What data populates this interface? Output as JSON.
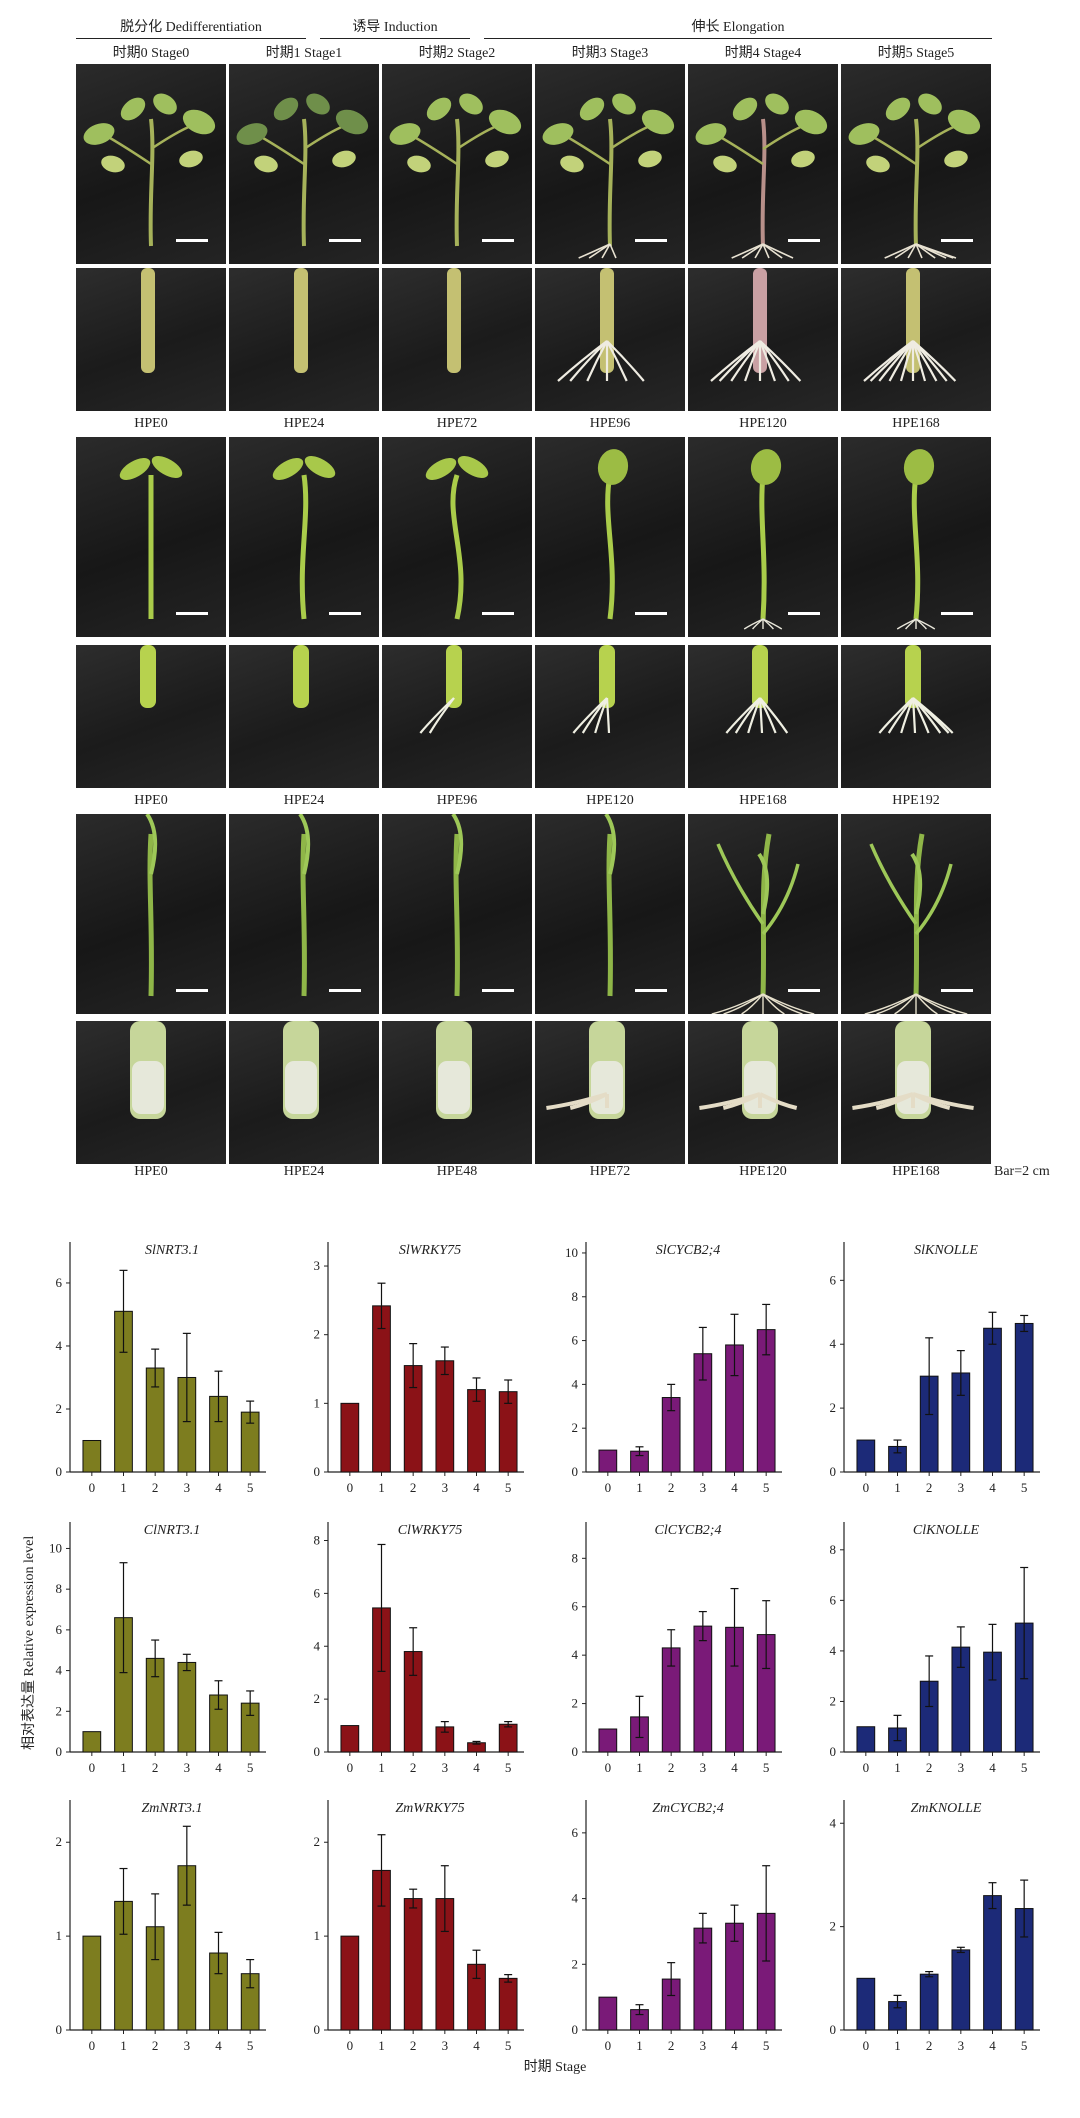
{
  "phases": [
    {
      "label": "脱分化 Dedifferentiation"
    },
    {
      "label": "诱导 Induction"
    },
    {
      "label": "伸长 Elongation"
    }
  ],
  "stages": [
    "时期0 Stage0",
    "时期1 Stage1",
    "时期2 Stage2",
    "时期3 Stage3",
    "时期4 Stage4",
    "时期5 Stage5"
  ],
  "photo_rows": [
    {
      "hpe": [
        "HPE0",
        "HPE24",
        "HPE72",
        "HPE96",
        "HPE120",
        "HPE168"
      ]
    },
    {
      "hpe": [
        "HPE0",
        "HPE24",
        "HPE96",
        "HPE120",
        "HPE168",
        "HPE192"
      ]
    },
    {
      "hpe": [
        "HPE0",
        "HPE24",
        "HPE48",
        "HPE72",
        "HPE120",
        "HPE168"
      ]
    }
  ],
  "scale_bar_note": "Bar=2 cm",
  "y_axis_label": "相对表达量 Relative expression level",
  "x_axis_label": "时期 Stage",
  "colors": {
    "olive": "#7d7d1f",
    "red": "#8b1217",
    "purple": "#7a1a78",
    "navy": "#1c2a78"
  },
  "chart_data": [
    {
      "type": "bar",
      "title": "SlNRT3.1",
      "categories": [
        "0",
        "1",
        "2",
        "3",
        "4",
        "5"
      ],
      "values": [
        1,
        5.1,
        3.3,
        3.0,
        2.4,
        1.9
      ],
      "errors": [
        0,
        1.3,
        0.6,
        1.4,
        0.8,
        0.35
      ],
      "ylim": [
        0,
        7.3
      ],
      "ticks": [
        0,
        2,
        4,
        6
      ],
      "color": "#7d7d1f"
    },
    {
      "type": "bar",
      "title": "SlWRKY75",
      "categories": [
        "0",
        "1",
        "2",
        "3",
        "4",
        "5"
      ],
      "values": [
        1,
        2.42,
        1.55,
        1.62,
        1.2,
        1.17
      ],
      "errors": [
        0,
        0.33,
        0.32,
        0.2,
        0.17,
        0.17
      ],
      "ylim": [
        0,
        3.35
      ],
      "ticks": [
        0,
        1,
        2,
        3
      ],
      "color": "#8b1217"
    },
    {
      "type": "bar",
      "title": "SlCYCB2;4",
      "categories": [
        "0",
        "1",
        "2",
        "3",
        "4",
        "5"
      ],
      "values": [
        1,
        0.95,
        3.4,
        5.4,
        5.8,
        6.5
      ],
      "errors": [
        0,
        0.2,
        0.6,
        1.2,
        1.4,
        1.15
      ],
      "ylim": [
        0,
        10.5
      ],
      "ticks": [
        0,
        2,
        4,
        6,
        8,
        10
      ],
      "color": "#7a1a78"
    },
    {
      "type": "bar",
      "title": "SlKNOLLE",
      "categories": [
        "0",
        "1",
        "2",
        "3",
        "4",
        "5"
      ],
      "values": [
        1,
        0.8,
        3.0,
        3.1,
        4.5,
        4.65
      ],
      "errors": [
        0,
        0.2,
        1.2,
        0.7,
        0.5,
        0.25
      ],
      "ylim": [
        0,
        7.2
      ],
      "ticks": [
        0,
        2,
        4,
        6
      ],
      "color": "#1c2a78"
    },
    {
      "type": "bar",
      "title": "ClNRT3.1",
      "categories": [
        "0",
        "1",
        "2",
        "3",
        "4",
        "5"
      ],
      "values": [
        1,
        6.6,
        4.6,
        4.4,
        2.8,
        2.4
      ],
      "errors": [
        0,
        2.7,
        0.9,
        0.4,
        0.7,
        0.6
      ],
      "ylim": [
        0,
        11.3
      ],
      "ticks": [
        0,
        2,
        4,
        6,
        8,
        10
      ],
      "color": "#7d7d1f"
    },
    {
      "type": "bar",
      "title": "ClWRKY75",
      "categories": [
        "0",
        "1",
        "2",
        "3",
        "4",
        "5"
      ],
      "values": [
        1,
        5.45,
        3.8,
        0.95,
        0.35,
        1.05
      ],
      "errors": [
        0,
        2.4,
        0.9,
        0.2,
        0.05,
        0.1
      ],
      "ylim": [
        0,
        8.7
      ],
      "ticks": [
        0,
        2,
        4,
        6,
        8
      ],
      "color": "#8b1217"
    },
    {
      "type": "bar",
      "title": "ClCYCB2;4",
      "categories": [
        "0",
        "1",
        "2",
        "3",
        "4",
        "5"
      ],
      "values": [
        0.95,
        1.45,
        4.3,
        5.2,
        5.15,
        4.85
      ],
      "errors": [
        0,
        0.85,
        0.75,
        0.6,
        1.6,
        1.4
      ],
      "ylim": [
        0,
        9.5
      ],
      "ticks": [
        0,
        2,
        4,
        6,
        8
      ],
      "color": "#7a1a78"
    },
    {
      "type": "bar",
      "title": "ClKNOLLE",
      "categories": [
        "0",
        "1",
        "2",
        "3",
        "4",
        "5"
      ],
      "values": [
        1,
        0.95,
        2.8,
        4.15,
        3.95,
        5.1
      ],
      "errors": [
        0,
        0.5,
        1.0,
        0.8,
        1.1,
        2.2
      ],
      "ylim": [
        0,
        9.1
      ],
      "ticks": [
        0,
        2,
        4,
        6,
        8
      ],
      "color": "#1c2a78"
    },
    {
      "type": "bar",
      "title": "ZmNRT3.1",
      "categories": [
        "0",
        "1",
        "2",
        "3",
        "4",
        "5"
      ],
      "values": [
        1,
        1.37,
        1.1,
        1.75,
        0.82,
        0.6
      ],
      "errors": [
        0,
        0.35,
        0.35,
        0.42,
        0.22,
        0.15
      ],
      "ylim": [
        0,
        2.45
      ],
      "ticks": [
        0,
        1,
        2
      ],
      "color": "#7d7d1f"
    },
    {
      "type": "bar",
      "title": "ZmWRKY75",
      "categories": [
        "0",
        "1",
        "2",
        "3",
        "4",
        "5"
      ],
      "values": [
        1,
        1.7,
        1.4,
        1.4,
        0.7,
        0.55
      ],
      "errors": [
        0,
        0.38,
        0.1,
        0.35,
        0.15,
        0.04
      ],
      "ylim": [
        0,
        2.45
      ],
      "ticks": [
        0,
        1,
        2
      ],
      "color": "#8b1217"
    },
    {
      "type": "bar",
      "title": "ZmCYCB2;4",
      "categories": [
        "0",
        "1",
        "2",
        "3",
        "4",
        "5"
      ],
      "values": [
        1,
        0.62,
        1.55,
        3.1,
        3.25,
        3.55
      ],
      "errors": [
        0,
        0.15,
        0.5,
        0.45,
        0.55,
        1.45
      ],
      "ylim": [
        0,
        7.0
      ],
      "ticks": [
        0,
        2,
        4,
        6
      ],
      "color": "#7a1a78"
    },
    {
      "type": "bar",
      "title": "ZmKNOLLE",
      "categories": [
        "0",
        "1",
        "2",
        "3",
        "4",
        "5"
      ],
      "values": [
        1,
        0.55,
        1.08,
        1.55,
        2.6,
        2.35
      ],
      "errors": [
        0,
        0.12,
        0.05,
        0.05,
        0.25,
        0.55
      ],
      "ylim": [
        0,
        4.45
      ],
      "ticks": [
        0,
        2,
        4
      ],
      "color": "#1c2a78"
    }
  ]
}
